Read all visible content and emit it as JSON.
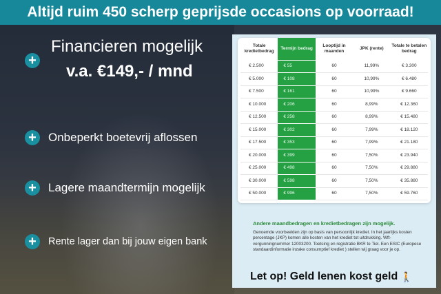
{
  "banner": {
    "title": "Altijd ruim 450 scherp geprijsde occasions op voorraad!"
  },
  "left": {
    "financing_title": "Financieren mogelijk",
    "financing_price": "v.a. €149,- / mnd",
    "bullets": [
      "Onbeperkt boetevrij aflossen",
      "Lagere maandtermijn mogelijk",
      "Rente lager dan bij jouw eigen bank"
    ],
    "icon": "plus-circle-icon"
  },
  "table": {
    "headers": [
      "Totale kredietbedrag",
      "Termijn bedrag",
      "Looptijd in maanden",
      "JPK (rente)",
      "Totale te betalen bedrag"
    ],
    "rows": [
      [
        "€ 2.500",
        "€ 55",
        "60",
        "11,99%",
        "€ 3.300"
      ],
      [
        "€ 5.000",
        "€ 108",
        "60",
        "10,99%",
        "€ 6.480"
      ],
      [
        "€ 7.500",
        "€ 161",
        "60",
        "10,99%",
        "€ 9.660"
      ],
      [
        "€ 10.000",
        "€ 206",
        "60",
        "8,99%",
        "€ 12.360"
      ],
      [
        "€ 12.500",
        "€ 258",
        "60",
        "8,99%",
        "€ 15.480"
      ],
      [
        "€ 15.000",
        "€ 302",
        "60",
        "7,99%",
        "€ 18.120"
      ],
      [
        "€ 17.500",
        "€ 353",
        "60",
        "7,99%",
        "€ 21.180"
      ],
      [
        "€ 20.000",
        "€ 399",
        "60",
        "7,50%",
        "€ 23.940"
      ],
      [
        "€ 25.000",
        "€ 498",
        "60",
        "7,50%",
        "€ 29.880"
      ],
      [
        "€ 30.000",
        "€ 598",
        "60",
        "7,50%",
        "€ 35.880"
      ],
      [
        "€ 50.000",
        "€ 996",
        "60",
        "7,50%",
        "€ 59.760"
      ]
    ],
    "highlight_color": "#25a043"
  },
  "note": {
    "title": "Andere maandbedragen en kredietbedragen zijn mogelijk.",
    "body": "Genoemde voorbeelden zijn op basis van persoonlijk krediet. In het jaarlijks kosten percentage (JKP) komen alle kosten van het krediet tot uitdrukking. Wft-vergunningnummer 12003200. Toetsing en registratie BKR te Tiel. Een ESIC (Europese standaardinformatie inzake consumptief krediet ) stellen wij graag voor je op.",
    "warning": "Let op! Geld lenen kost geld"
  }
}
